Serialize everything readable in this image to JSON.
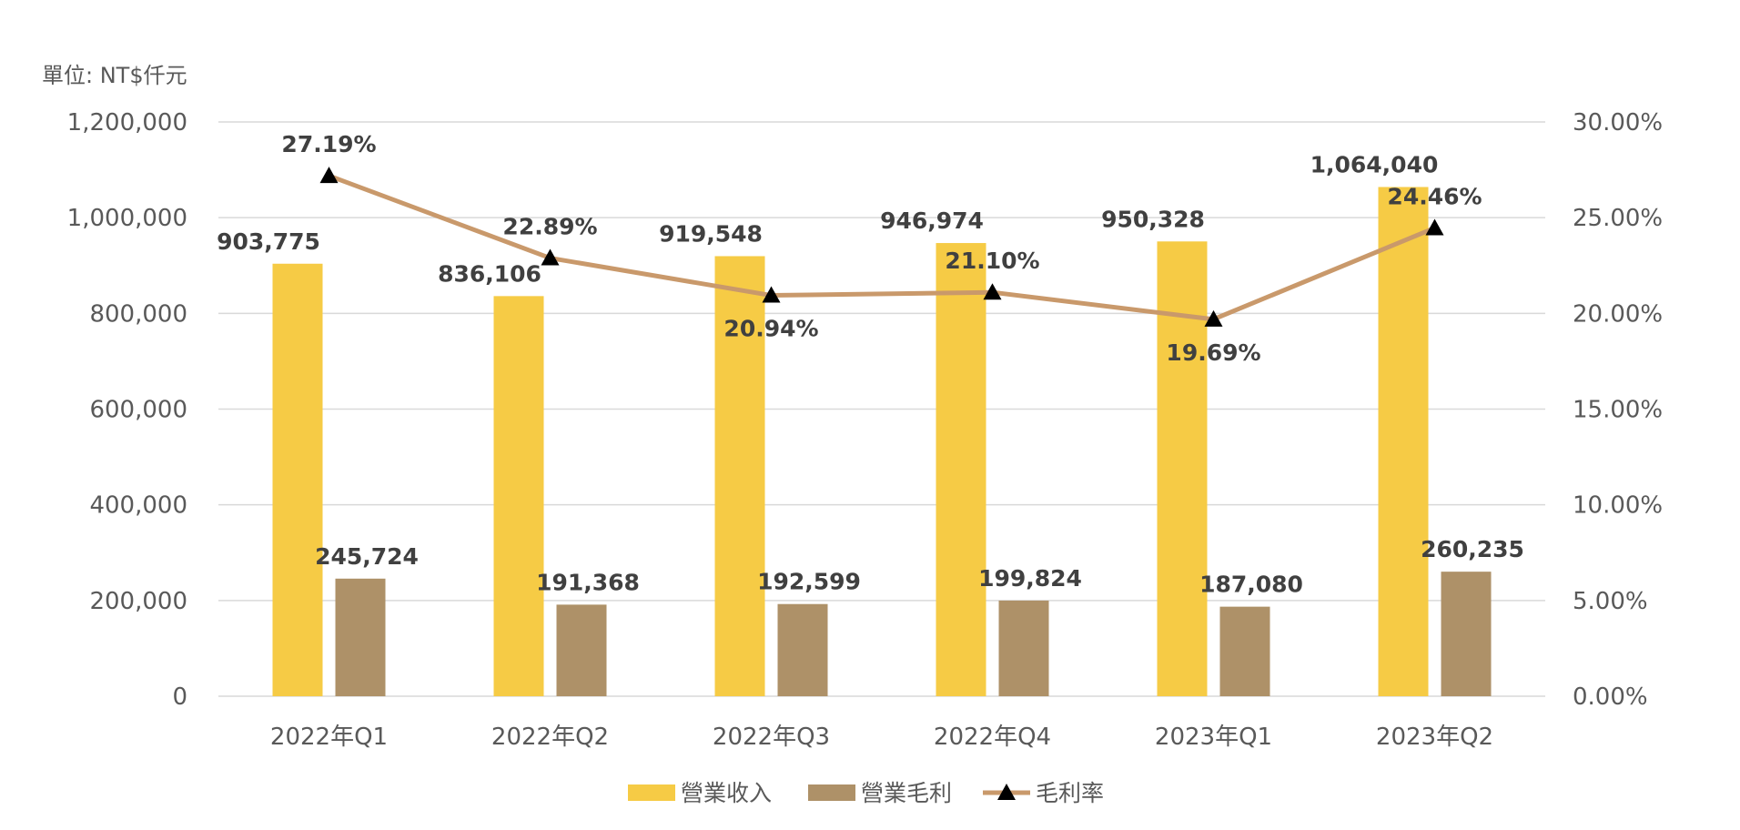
{
  "chart_data": {
    "type": "bar",
    "unit_label": "單位: NT$仟元",
    "categories": [
      "2022年Q1",
      "2022年Q2",
      "2022年Q3",
      "2022年Q4",
      "2023年Q1",
      "2023年Q2"
    ],
    "series": [
      {
        "name": "營業收入",
        "type": "bar",
        "axis": "left",
        "color": "#F6CB45",
        "values": [
          903775,
          836106,
          919548,
          946974,
          950328,
          1064040
        ],
        "labels": [
          "903,775",
          "836,106",
          "919,548",
          "946,974",
          "950,328",
          "1,064,040"
        ]
      },
      {
        "name": "營業毛利",
        "type": "bar",
        "axis": "left",
        "color": "#AE9168",
        "values": [
          245724,
          191368,
          192599,
          199824,
          187080,
          260235
        ],
        "labels": [
          "245,724",
          "191,368",
          "192,599",
          "199,824",
          "187,080",
          "260,235"
        ]
      },
      {
        "name": "毛利率",
        "type": "line",
        "axis": "right",
        "color": "#C9996B",
        "marker": "triangle",
        "marker_color": "#000000",
        "values": [
          27.19,
          22.89,
          20.94,
          21.1,
          19.69,
          24.46
        ],
        "labels": [
          "27.19%",
          "22.89%",
          "20.94%",
          "21.10%",
          "19.69%",
          "24.46%"
        ]
      }
    ],
    "y_left": {
      "min": 0,
      "max": 1200000,
      "ticks": [
        0,
        200000,
        400000,
        600000,
        800000,
        1000000,
        1200000
      ],
      "tick_labels": [
        "0",
        "200,000",
        "400,000",
        "600,000",
        "800,000",
        "1,000,000",
        "1,200,000"
      ]
    },
    "y_right": {
      "min": 0,
      "max": 30,
      "ticks": [
        0,
        5,
        10,
        15,
        20,
        25,
        30
      ],
      "tick_labels": [
        "0.00%",
        "5.00%",
        "10.00%",
        "15.00%",
        "20.00%",
        "25.00%",
        "30.00%"
      ]
    },
    "grid": true,
    "legend_position": "bottom-center"
  }
}
